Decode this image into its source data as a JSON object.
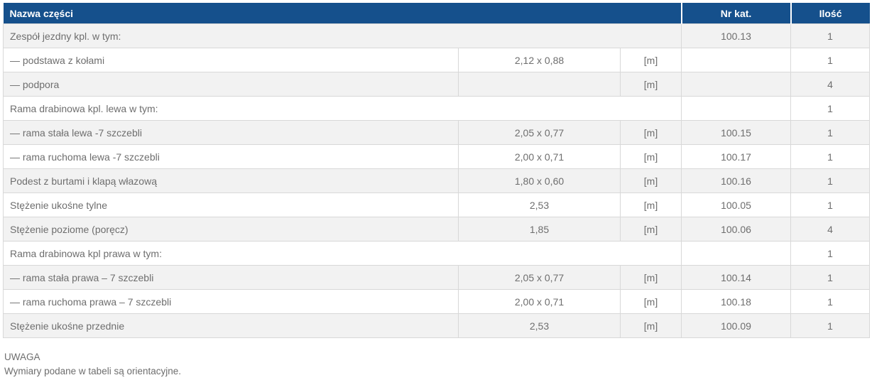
{
  "table": {
    "columns": {
      "name": "Nazwa części",
      "nr_kat": "Nr kat.",
      "qty": "Ilość"
    },
    "rows": [
      {
        "name": "Zespół jezdny kpl. w tym:",
        "dim": "",
        "unit": "",
        "nr_kat": "100.13",
        "qty": "1",
        "merged": true
      },
      {
        "name": "— podstawa z kołami",
        "dim": "2,12 x 0,88",
        "unit": "[m]",
        "nr_kat": "",
        "qty": "1",
        "merged": false
      },
      {
        "name": "— podpora",
        "dim": "",
        "unit": "[m]",
        "nr_kat": "",
        "qty": "4",
        "merged": false
      },
      {
        "name": "Rama drabinowa kpl. lewa w tym:",
        "dim": "",
        "unit": "",
        "nr_kat": "",
        "qty": "1",
        "merged": true
      },
      {
        "name": "— rama stała lewa -7 szczebli",
        "dim": "2,05 x 0,77",
        "unit": "[m]",
        "nr_kat": "100.15",
        "qty": "1",
        "merged": false
      },
      {
        "name": "— rama ruchoma lewa -7 szczebli",
        "dim": "2,00 x 0,71",
        "unit": "[m]",
        "nr_kat": "100.17",
        "qty": "1",
        "merged": false
      },
      {
        "name": "Podest z burtami i klapą włazową",
        "dim": "1,80 x 0,60",
        "unit": "[m]",
        "nr_kat": "100.16",
        "qty": "1",
        "merged": false
      },
      {
        "name": "Stężenie ukośne tylne",
        "dim": "2,53",
        "unit": "[m]",
        "nr_kat": "100.05",
        "qty": "1",
        "merged": false
      },
      {
        "name": "Stężenie poziome (poręcz)",
        "dim": "1,85",
        "unit": "[m]",
        "nr_kat": "100.06",
        "qty": "4",
        "merged": false
      },
      {
        "name": "Rama drabinowa kpl prawa w tym:",
        "dim": "",
        "unit": "",
        "nr_kat": "",
        "qty": "1",
        "merged": true
      },
      {
        "name": "— rama stała prawa – 7 szczebli",
        "dim": "2,05 x 0,77",
        "unit": "[m]",
        "nr_kat": "100.14",
        "qty": "1",
        "merged": false
      },
      {
        "name": "— rama ruchoma prawa – 7 szczebli",
        "dim": "2,00 x 0,71",
        "unit": "[m]",
        "nr_kat": "100.18",
        "qty": "1",
        "merged": false
      },
      {
        "name": "Stężenie ukośne przednie",
        "dim": "2,53",
        "unit": "[m]",
        "nr_kat": "100.09",
        "qty": "1",
        "merged": false
      }
    ]
  },
  "note": {
    "title": "UWAGA",
    "text": "Wymiary podane w tabeli są orientacyjne."
  },
  "colors": {
    "header_bg": "#15508c",
    "header_text": "#ffffff",
    "row_alt_bg": "#f2f2f2",
    "border": "#d8d8d8",
    "body_text": "#6e6e6e"
  }
}
